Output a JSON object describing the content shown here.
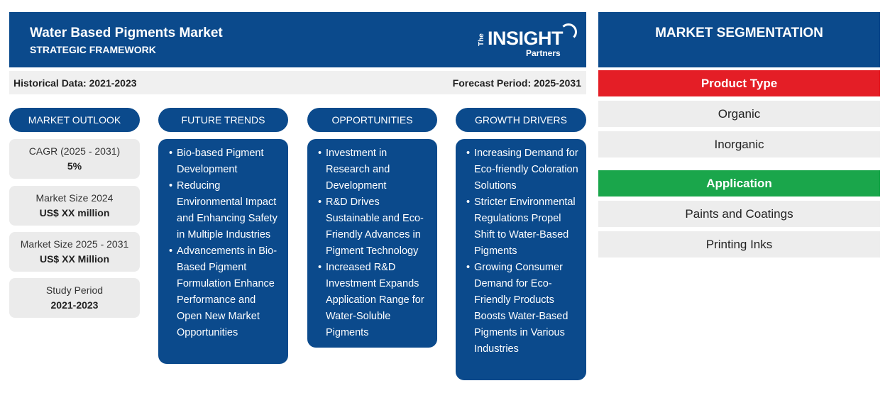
{
  "header": {
    "title": "Water Based Pigments Market",
    "subtitle": "STRATEGIC FRAMEWORK",
    "logo": {
      "the": "The",
      "insight": "INSIGHT",
      "partners": "Partners"
    }
  },
  "databar": {
    "historical": "Historical Data: 2021-2023",
    "forecast": "Forecast Period: 2025-2031"
  },
  "columns": {
    "outlook": "MARKET OUTLOOK",
    "trends": "FUTURE TRENDS",
    "opportunities": "OPPORTUNITIES",
    "drivers": "GROWTH DRIVERS"
  },
  "outlook_stats": [
    {
      "label": "CAGR (2025 - 2031)",
      "value": "5%"
    },
    {
      "label": "Market Size 2024",
      "value": "US$ XX million"
    },
    {
      "label": "Market Size 2025 - 2031",
      "value": "US$ XX Million"
    },
    {
      "label": "Study Period",
      "value": "2021-2023"
    }
  ],
  "future_trends": [
    "Bio-based Pigment Development",
    "Reducing Environmental Impact and Enhancing Safety in Multiple Industries",
    "Advancements in Bio-Based Pigment Formulation Enhance Performance and Open New Market Opportunities"
  ],
  "opportunities": [
    "Investment in Research and Development",
    "R&D Drives Sustainable and Eco-Friendly Advances in Pigment Technology",
    "Increased R&D Investment Expands Application Range for Water-Soluble Pigments"
  ],
  "growth_drivers": [
    "Increasing Demand for Eco-friendly Coloration Solutions",
    "Stricter Environmental Regulations Propel Shift to Water-Based Pigments",
    "Growing Consumer Demand for Eco-Friendly Products Boosts Water-Based Pigments in Various Industries"
  ],
  "segmentation": {
    "title": "MARKET SEGMENTATION",
    "groups": [
      {
        "name": "Product Type",
        "color": "#e41e26",
        "items": [
          "Organic",
          "Inorganic"
        ]
      },
      {
        "name": "Application",
        "color": "#1aa64b",
        "items": [
          "Paints and Coatings",
          "Printing Inks"
        ]
      }
    ]
  },
  "colors": {
    "primary": "#0b4a8c",
    "panel": "#ebebeb"
  }
}
